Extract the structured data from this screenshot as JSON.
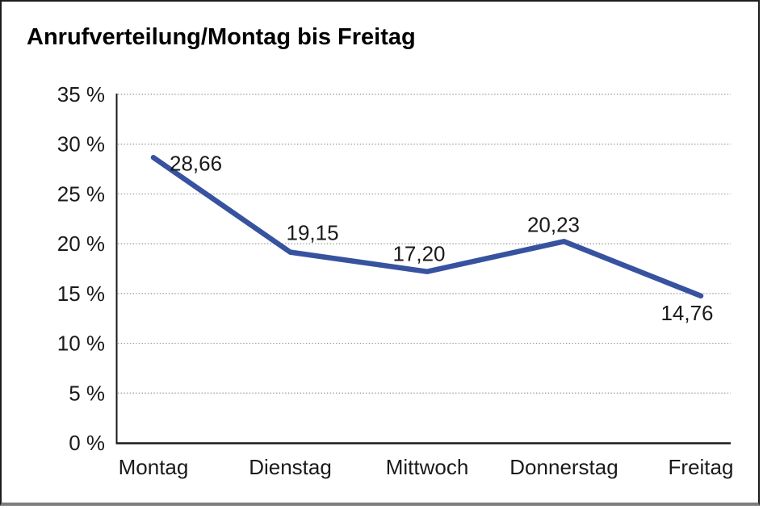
{
  "title": "Anrufverteilung/Montag bis Freitag",
  "colors": {
    "line": "#37529f",
    "axis": "#1a1a1a",
    "grid": "#8c8c8c",
    "text": "#1a1a1a",
    "frame_border": "#1c1c1c",
    "frame_bottom": "#7d7d7d",
    "background": "#ffffff"
  },
  "chart_data": {
    "type": "line",
    "title": "Anrufverteilung/Montag bis Freitag",
    "categories": [
      "Montag",
      "Dienstag",
      "Mittwoch",
      "Donnerstag",
      "Freitag"
    ],
    "values": [
      28.66,
      19.15,
      17.2,
      20.23,
      14.76
    ],
    "value_labels": [
      "28,66",
      "19,15",
      "17,20",
      "20,23",
      "14,76"
    ],
    "series_name": "Anrufverteilung",
    "xlabel": "",
    "ylabel": "",
    "ylim": [
      0,
      35
    ],
    "ytick_step": 5,
    "ytick_labels": [
      "0 %",
      "5 %",
      "10 %",
      "15 %",
      "20 %",
      "25 %",
      "30 %",
      "35 %"
    ],
    "grid": "horizontal-dotted",
    "legend": "none",
    "line_color": "#37529f"
  }
}
